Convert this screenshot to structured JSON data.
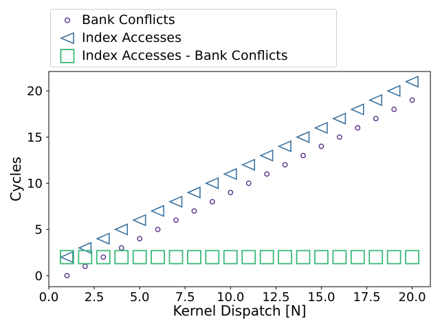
{
  "figure": {
    "background": "#ffffff"
  },
  "legend": {
    "border_color": "#cccccc",
    "items": [
      {
        "label": "Bank Conflicts",
        "marker": "circle",
        "icon": "circle-icon",
        "color": "#552d87"
      },
      {
        "label": "Index Accesses",
        "marker": "triangle-left",
        "icon": "triangle-left-icon",
        "color": "#3a719f"
      },
      {
        "label": "Index Accesses - Bank Conflicts",
        "marker": "square",
        "icon": "square-icon",
        "color": "#38b877"
      }
    ]
  },
  "chart_data": {
    "type": "scatter",
    "title": "",
    "xlabel": "Kernel Dispatch [N]",
    "ylabel": "Cycles",
    "xlim": [
      0,
      21
    ],
    "ylim": [
      -1.2,
      22.1
    ],
    "xticks": [
      0,
      2.5,
      5,
      7.5,
      10,
      12.5,
      15,
      17.5,
      20
    ],
    "xtick_labels": [
      "0.0",
      "2.5",
      "5.0",
      "7.5",
      "10.0",
      "12.5",
      "15.0",
      "17.5",
      "20.0"
    ],
    "yticks": [
      0,
      5,
      10,
      15,
      20
    ],
    "ytick_labels": [
      "0",
      "5",
      "10",
      "15",
      "20"
    ],
    "grid": false,
    "legend_position": "upper-left-above-axes",
    "x": [
      1,
      2,
      3,
      4,
      5,
      6,
      7,
      8,
      9,
      10,
      11,
      12,
      13,
      14,
      15,
      16,
      17,
      18,
      19,
      20
    ],
    "series": [
      {
        "name": "Bank Conflicts",
        "marker": "circle",
        "color": "#552d87",
        "values": [
          0,
          1,
          2,
          3,
          4,
          5,
          6,
          7,
          8,
          9,
          10,
          11,
          12,
          13,
          14,
          15,
          16,
          17,
          18,
          19
        ]
      },
      {
        "name": "Index Accesses",
        "marker": "triangle-left",
        "color": "#3a719f",
        "values": [
          2,
          3,
          4,
          5,
          6,
          7,
          8,
          9,
          10,
          11,
          12,
          13,
          14,
          15,
          16,
          17,
          18,
          19,
          20,
          21
        ]
      },
      {
        "name": "Index Accesses - Bank Conflicts",
        "marker": "square",
        "color": "#38b877",
        "values": [
          2,
          2,
          2,
          2,
          2,
          2,
          2,
          2,
          2,
          2,
          2,
          2,
          2,
          2,
          2,
          2,
          2,
          2,
          2,
          2
        ]
      }
    ]
  }
}
